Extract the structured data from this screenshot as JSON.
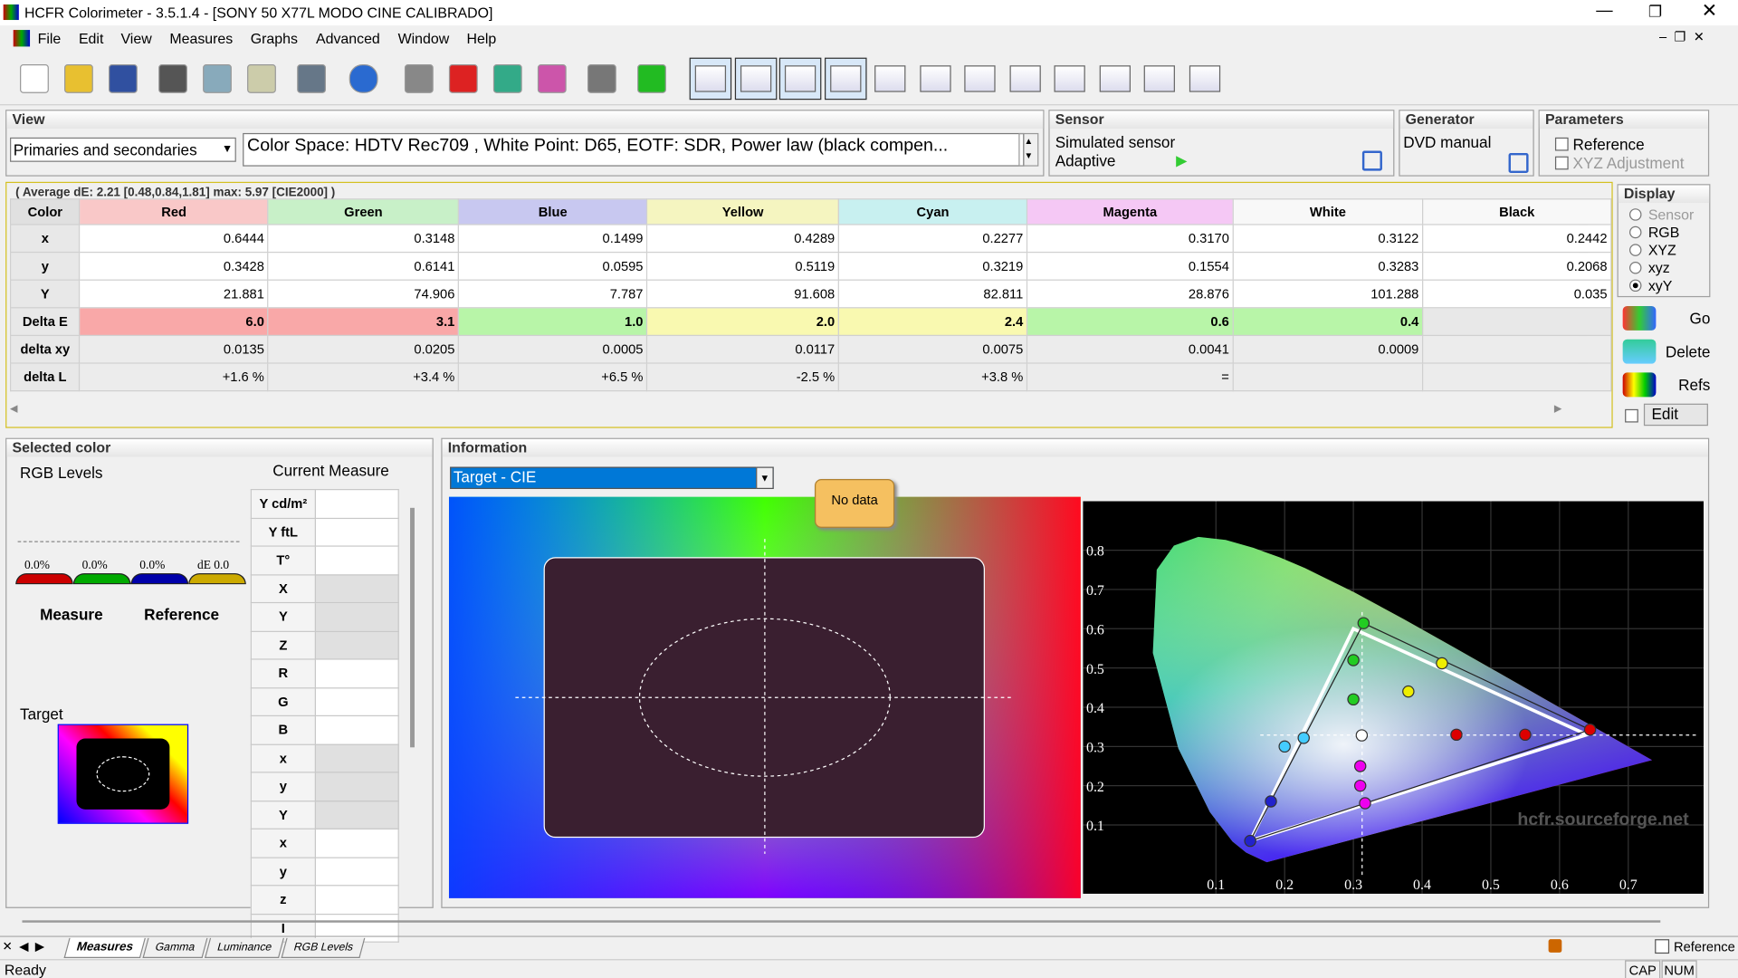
{
  "window": {
    "title": "HCFR Colorimeter - 3.5.1.4 - [SONY 50 X77L MODO CINE CALIBRADO]"
  },
  "menu": [
    "File",
    "Edit",
    "View",
    "Measures",
    "Graphs",
    "Advanced",
    "Window",
    "Help"
  ],
  "view": {
    "label": "View",
    "select": "Primaries and secondaries",
    "info": "Color Space: HDTV Rec709 , White Point: D65, EOTF:  SDR, Power law (black compen..."
  },
  "sensor": {
    "label": "Sensor",
    "name": "Simulated sensor",
    "mode": "Adaptive"
  },
  "generator": {
    "label": "Generator",
    "name": "DVD manual"
  },
  "parameters": {
    "label": "Parameters",
    "options": [
      "Reference",
      "XYZ Adjustment"
    ]
  },
  "table": {
    "summary": "( Average dE: 2.21 [0.48,0.84,1.81] max: 5.97 [CIE2000] )",
    "headers": [
      "Color",
      "Red",
      "Green",
      "Blue",
      "Yellow",
      "Cyan",
      "Magenta",
      "White",
      "Black"
    ],
    "rows": [
      [
        "x",
        "0.6444",
        "0.3148",
        "0.1499",
        "0.4289",
        "0.2277",
        "0.3170",
        "0.3122",
        "0.2442"
      ],
      [
        "y",
        "0.3428",
        "0.6141",
        "0.0595",
        "0.5119",
        "0.3219",
        "0.1554",
        "0.3283",
        "0.2068"
      ],
      [
        "Y",
        "21.881",
        "74.906",
        "7.787",
        "91.608",
        "82.811",
        "28.876",
        "101.288",
        "0.035"
      ],
      [
        "Delta E",
        "6.0",
        "3.1",
        "1.0",
        "2.0",
        "2.4",
        "0.6",
        "0.4",
        null
      ],
      [
        "delta xy",
        "0.0135",
        "0.0205",
        "0.0005",
        "0.0117",
        "0.0075",
        "0.0041",
        "0.0009",
        null
      ],
      [
        "delta L",
        "+1.6 %",
        "+3.4 %",
        "+6.5 %",
        "-2.5 %",
        "+3.8 %",
        "=",
        null,
        null
      ]
    ]
  },
  "display": {
    "label": "Display",
    "options": [
      "Sensor",
      "RGB",
      "XYZ",
      "xyz",
      "xyY"
    ]
  },
  "actions": [
    "Go",
    "Delete",
    "Refs"
  ],
  "edit": "Edit",
  "selected": {
    "label": "Selected color",
    "rgb": "RGB Levels",
    "current": "Current Measure",
    "levels": [
      "0.0%",
      "0.0%",
      "0.0%",
      "dE 0.0"
    ],
    "measure": "Measure",
    "reference": "Reference",
    "target": "Target",
    "fields": [
      "Y cd/m²",
      "Y ftL",
      "T°",
      "X",
      "Y",
      "Z",
      "R",
      "G",
      "B",
      "x",
      "y",
      "Y",
      "x",
      "y",
      "z",
      "I"
    ]
  },
  "information": {
    "label": "Information",
    "select": "Target - CIE",
    "tooltip": "No data",
    "watermark": "hcfr.sourceforge.net",
    "yaxis": [
      "0.8",
      "0.7",
      "0.6",
      "0.5",
      "0.4",
      "0.3",
      "0.2",
      "0.1"
    ],
    "xaxis": [
      "0.1",
      "0.2",
      "0.3",
      "0.4",
      "0.5",
      "0.6",
      "0.7"
    ]
  },
  "tabs": [
    "Measures",
    "Gamma",
    "Luminance",
    "RGB Levels"
  ],
  "status": {
    "text": "Ready",
    "reference": "Reference",
    "indicators": [
      "CAP",
      "NUM"
    ]
  }
}
